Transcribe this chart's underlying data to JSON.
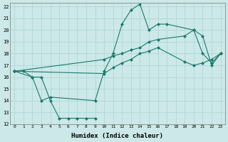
{
  "xlabel": "Humidex (Indice chaleur)",
  "xlim": [
    -0.5,
    23.5
  ],
  "ylim": [
    12,
    22.3
  ],
  "yticks": [
    12,
    13,
    14,
    15,
    16,
    17,
    18,
    19,
    20,
    21,
    22
  ],
  "xticks": [
    0,
    1,
    2,
    3,
    4,
    5,
    6,
    7,
    8,
    9,
    10,
    11,
    12,
    13,
    14,
    15,
    16,
    17,
    18,
    19,
    20,
    21,
    22,
    23
  ],
  "bg_color": "#cce8e8",
  "grid_color": "#aad4d4",
  "line_color": "#1a7a6e",
  "series1_x": [
    0,
    1,
    2,
    3,
    4,
    5,
    6,
    7,
    8,
    9
  ],
  "series1_y": [
    16.5,
    16.5,
    16.0,
    16.0,
    14.0,
    12.5,
    12.5,
    12.5,
    12.5,
    12.5
  ],
  "series2_x": [
    0,
    2,
    3,
    4,
    9,
    10,
    11,
    12,
    13,
    14,
    15,
    16,
    17,
    20,
    21,
    22,
    23
  ],
  "series2_y": [
    16.5,
    16.0,
    14.0,
    14.3,
    14.0,
    16.5,
    18.0,
    20.5,
    21.7,
    22.2,
    20.0,
    20.5,
    20.5,
    20.0,
    19.5,
    17.0,
    18.0
  ],
  "series3_x": [
    0,
    10,
    11,
    12,
    13,
    14,
    15,
    16,
    19,
    20,
    21,
    22,
    23
  ],
  "series3_y": [
    16.5,
    17.5,
    17.8,
    18.0,
    18.3,
    18.5,
    19.0,
    19.2,
    19.5,
    20.0,
    18.0,
    17.2,
    18.0
  ],
  "series4_x": [
    0,
    10,
    11,
    12,
    13,
    14,
    15,
    16,
    19,
    20,
    21,
    22,
    23
  ],
  "series4_y": [
    16.5,
    16.3,
    16.8,
    17.2,
    17.5,
    18.0,
    18.2,
    18.5,
    17.3,
    17.0,
    17.2,
    17.5,
    18.0
  ]
}
